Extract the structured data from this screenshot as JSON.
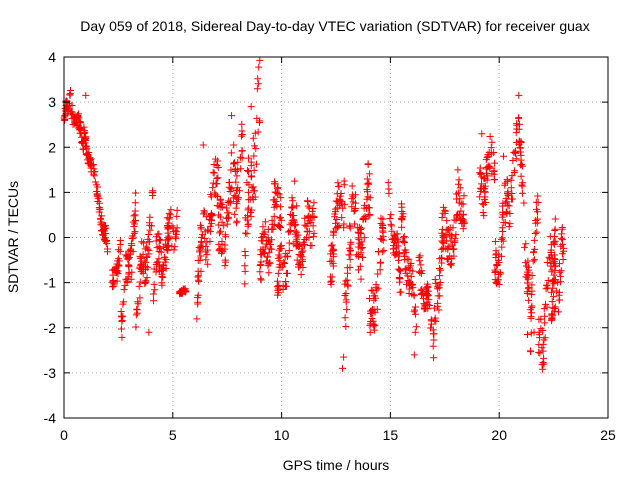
{
  "chart_data": {
    "type": "scatter",
    "title": "Day 059 of 2018, Sidereal Day-to-day VTEC variation (SDTVAR) for receiver guax",
    "xlabel": "GPS time / hours",
    "ylabel": "SDTVAR / TECUs",
    "xlim": [
      0,
      25
    ],
    "ylim": [
      -4,
      4
    ],
    "xticks": [
      0,
      5,
      10,
      15,
      20,
      25
    ],
    "yticks": [
      -4,
      -3,
      -2,
      -1,
      0,
      1,
      2,
      3,
      4
    ],
    "xtick_labels": [
      "0",
      "5",
      "10",
      "15",
      "20",
      "25"
    ],
    "ytick_labels": [
      "-4",
      "-3",
      "-2",
      "-1",
      "0",
      "1",
      "2",
      "3",
      "4"
    ],
    "grid": true,
    "marker": "+",
    "marker_color": "#ff0000",
    "series": [
      {
        "name": "guax",
        "segments": [
          {
            "x": [
              0.0,
              0.3
            ],
            "y": [
              2.6,
              3.2
            ],
            "spread": 0.3
          },
          {
            "x": [
              0.3,
              0.9
            ],
            "y": [
              2.9,
              2.2
            ],
            "spread": 0.35
          },
          {
            "x": [
              0.9,
              1.2
            ],
            "y": [
              2.4,
              1.6
            ],
            "spread": 0.3
          },
          {
            "x": [
              1.2,
              2.0
            ],
            "y": [
              1.8,
              -0.3
            ],
            "spread": 0.4
          },
          {
            "x": [
              2.2,
              2.6
            ],
            "y": [
              -1.2,
              -0.2
            ],
            "spread": 0.5
          },
          {
            "x": [
              2.6,
              3.3
            ],
            "y": [
              -1.8,
              0.4
            ],
            "spread": 0.8
          },
          {
            "x": [
              3.3,
              4.1
            ],
            "y": [
              -1.6,
              0.6
            ],
            "spread": 0.9
          },
          {
            "x": [
              4.1,
              5.2
            ],
            "y": [
              -0.8,
              0.3
            ],
            "spread": 0.9
          },
          {
            "x": [
              5.3,
              5.6
            ],
            "y": [
              -1.2,
              -1.2
            ],
            "spread": 0.1
          },
          {
            "x": [
              6.1,
              7.1
            ],
            "y": [
              -0.9,
              1.5
            ],
            "spread": 1.2
          },
          {
            "x": [
              7.1,
              8.2
            ],
            "y": [
              -0.3,
              1.9
            ],
            "spread": 1.3
          },
          {
            "x": [
              8.3,
              9.0
            ],
            "y": [
              -0.3,
              2.8
            ],
            "spread": 1.5
          },
          {
            "x": [
              9.0,
              10.0
            ],
            "y": [
              -0.6,
              0.9
            ],
            "spread": 1.0
          },
          {
            "x": [
              9.8,
              10.7
            ],
            "y": [
              -1.2,
              0.6
            ],
            "spread": 1.0
          },
          {
            "x": [
              10.7,
              11.5
            ],
            "y": [
              -0.5,
              0.6
            ],
            "spread": 0.8
          },
          {
            "x": [
              12.2,
              12.9
            ],
            "y": [
              -0.5,
              1.1
            ],
            "spread": 1.0
          },
          {
            "x": [
              12.9,
              13.4
            ],
            "y": [
              -1.4,
              0.9
            ],
            "spread": 1.2
          },
          {
            "x": [
              13.4,
              14.1
            ],
            "y": [
              -0.6,
              1.2
            ],
            "spread": 1.2
          },
          {
            "x": [
              14.0,
              14.7
            ],
            "y": [
              -2.2,
              0.0
            ],
            "spread": 1.0
          },
          {
            "x": [
              14.9,
              15.5
            ],
            "y": [
              0.8,
              -1.0
            ],
            "spread": 0.7
          },
          {
            "x": [
              15.5,
              16.2
            ],
            "y": [
              0.3,
              -1.8
            ],
            "spread": 0.8
          },
          {
            "x": [
              16.3,
              17.0
            ],
            "y": [
              -0.5,
              -2.2
            ],
            "spread": 0.7
          },
          {
            "x": [
              17.0,
              17.6
            ],
            "y": [
              -1.6,
              0.4
            ],
            "spread": 1.0
          },
          {
            "x": [
              17.6,
              18.4
            ],
            "y": [
              -0.4,
              1.0
            ],
            "spread": 0.9
          },
          {
            "x": [
              19.1,
              19.8
            ],
            "y": [
              0.9,
              2.0
            ],
            "spread": 0.9
          },
          {
            "x": [
              19.8,
              20.8
            ],
            "y": [
              -0.8,
              1.8
            ],
            "spread": 1.0
          },
          {
            "x": [
              20.8,
              21.4
            ],
            "y": [
              2.9,
              -1.4
            ],
            "spread": 0.9
          },
          {
            "x": [
              21.4,
              21.8
            ],
            "y": [
              -2.0,
              0.9
            ],
            "spread": 1.0
          },
          {
            "x": [
              21.8,
              22.6
            ],
            "y": [
              -2.8,
              0.3
            ],
            "spread": 1.2
          },
          {
            "x": [
              22.4,
              23.0
            ],
            "y": [
              -1.8,
              -0.2
            ],
            "spread": 0.9
          }
        ],
        "outliers": [
          {
            "x": 1.0,
            "y": 3.15
          },
          {
            "x": 3.9,
            "y": -2.1
          },
          {
            "x": 6.4,
            "y": 2.05
          },
          {
            "x": 7.7,
            "y": 2.7
          },
          {
            "x": 7.8,
            "y": 2.05
          },
          {
            "x": 8.6,
            "y": 2.9
          },
          {
            "x": 8.7,
            "y": 2.2
          },
          {
            "x": 10.6,
            "y": 1.25
          },
          {
            "x": 12.8,
            "y": -2.9
          },
          {
            "x": 12.85,
            "y": -2.65
          },
          {
            "x": 16.1,
            "y": -2.6
          },
          {
            "x": 18.1,
            "y": 1.5
          },
          {
            "x": 19.2,
            "y": 2.3
          },
          {
            "x": 20.2,
            "y": 1.8
          },
          {
            "x": 20.9,
            "y": 3.15
          },
          {
            "x": 21.3,
            "y": -2.15
          },
          {
            "x": 21.6,
            "y": -2.1
          }
        ]
      }
    ]
  }
}
